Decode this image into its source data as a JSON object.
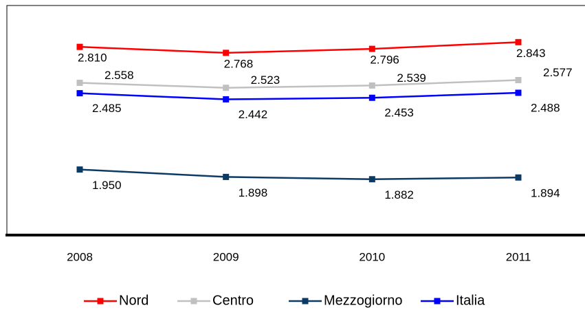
{
  "chart_data": {
    "type": "line",
    "categories": [
      "2008",
      "2009",
      "2010",
      "2011"
    ],
    "ylim": [
      1500,
      3100
    ],
    "series": [
      {
        "name": "Nord",
        "color": "#ff0000",
        "values": [
          2810,
          2768,
          2796,
          2843
        ],
        "value_labels": [
          "2.810",
          "2.768",
          "2.796",
          "2.843"
        ]
      },
      {
        "name": "Centro",
        "color": "#c0c0c0",
        "values": [
          2558,
          2523,
          2539,
          2577
        ],
        "value_labels": [
          "2.558",
          "2.523",
          "2.539",
          "2.577"
        ]
      },
      {
        "name": "Mezzogiorno",
        "color": "#0d3a63",
        "values": [
          1950,
          1898,
          1882,
          1894
        ],
        "value_labels": [
          "1.950",
          "1.898",
          "1.882",
          "1.894"
        ]
      },
      {
        "name": "Italia",
        "color": "#0000ff",
        "values": [
          2485,
          2442,
          2453,
          2488
        ],
        "value_labels": [
          "2.485",
          "2.442",
          "2.453",
          "2.488"
        ]
      }
    ],
    "legend": "bottom"
  }
}
